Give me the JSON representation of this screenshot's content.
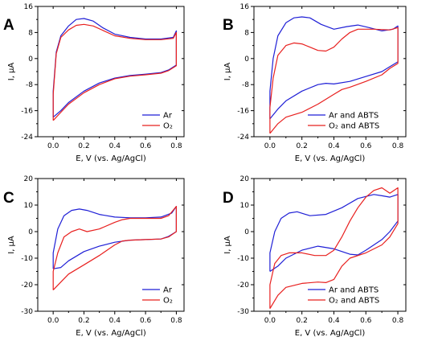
{
  "chart_data": [
    {
      "panel": "A",
      "type": "line",
      "xlabel": "E, V (vs. Ag/AgCl)",
      "ylabel": "I, μA",
      "xlim": [
        -0.1,
        0.85
      ],
      "ylim": [
        -24,
        16
      ],
      "xticks": [
        0.0,
        0.2,
        0.4,
        0.6,
        0.8
      ],
      "yticks": [
        -24,
        -16,
        -8,
        0,
        8,
        16
      ],
      "xtick_labels": [
        "0.0",
        "0.2",
        "0.4",
        "0.6",
        "0.8"
      ],
      "ytick_labels": [
        "-24",
        "-16",
        "-8",
        "0",
        "8",
        "16"
      ],
      "legend_position": "bottom-right",
      "series": [
        {
          "name": "Ar",
          "color": "#1f1fd6",
          "points": [
            [
              0.0,
              -18
            ],
            [
              0.05,
              -16
            ],
            [
              0.1,
              -13.5
            ],
            [
              0.2,
              -10
            ],
            [
              0.3,
              -7.5
            ],
            [
              0.4,
              -6
            ],
            [
              0.5,
              -5.2
            ],
            [
              0.6,
              -4.8
            ],
            [
              0.7,
              -4.3
            ],
            [
              0.75,
              -3.5
            ],
            [
              0.8,
              -2
            ],
            [
              0.8,
              8.5
            ],
            [
              0.78,
              6.5
            ],
            [
              0.7,
              6
            ],
            [
              0.6,
              6
            ],
            [
              0.5,
              6.5
            ],
            [
              0.4,
              7.5
            ],
            [
              0.32,
              9.5
            ],
            [
              0.26,
              11.5
            ],
            [
              0.2,
              12.3
            ],
            [
              0.15,
              12
            ],
            [
              0.1,
              10
            ],
            [
              0.05,
              7
            ],
            [
              0.02,
              2
            ],
            [
              0.0,
              -10
            ],
            [
              0.0,
              -18
            ]
          ]
        },
        {
          "name": "O₂",
          "color": "#e8201f",
          "points": [
            [
              0.0,
              -19
            ],
            [
              0.05,
              -16.5
            ],
            [
              0.1,
              -14
            ],
            [
              0.2,
              -10.5
            ],
            [
              0.3,
              -8
            ],
            [
              0.4,
              -6.2
            ],
            [
              0.5,
              -5.4
            ],
            [
              0.6,
              -5
            ],
            [
              0.7,
              -4.5
            ],
            [
              0.75,
              -3.7
            ],
            [
              0.8,
              -2.2
            ],
            [
              0.8,
              8
            ],
            [
              0.78,
              6.2
            ],
            [
              0.7,
              5.8
            ],
            [
              0.6,
              5.8
            ],
            [
              0.5,
              6.2
            ],
            [
              0.4,
              7
            ],
            [
              0.33,
              8.5
            ],
            [
              0.26,
              10
            ],
            [
              0.2,
              10.5
            ],
            [
              0.15,
              10.2
            ],
            [
              0.1,
              8.8
            ],
            [
              0.05,
              6.5
            ],
            [
              0.02,
              1.5
            ],
            [
              0.0,
              -11
            ],
            [
              0.0,
              -19
            ]
          ]
        }
      ]
    },
    {
      "panel": "B",
      "type": "line",
      "xlabel": "E, V (vs. Ag/AgCl)",
      "ylabel": "I, μA",
      "xlim": [
        -0.1,
        0.85
      ],
      "ylim": [
        -24,
        16
      ],
      "xticks": [
        0.0,
        0.2,
        0.4,
        0.6,
        0.8
      ],
      "yticks": [
        -24,
        -16,
        -8,
        0,
        8,
        16
      ],
      "xtick_labels": [
        "0.0",
        "0.2",
        "0.4",
        "0.6",
        "0.8"
      ],
      "ytick_labels": [
        "-24",
        "-16",
        "-8",
        "0",
        "8",
        "16"
      ],
      "legend_position": "bottom-right",
      "series": [
        {
          "name": "Ar and ABTS",
          "color": "#1f1fd6",
          "points": [
            [
              0.0,
              -18.5
            ],
            [
              0.05,
              -15.5
            ],
            [
              0.1,
              -13
            ],
            [
              0.2,
              -10
            ],
            [
              0.3,
              -8
            ],
            [
              0.35,
              -7.6
            ],
            [
              0.4,
              -7.8
            ],
            [
              0.5,
              -7
            ],
            [
              0.6,
              -5.5
            ],
            [
              0.7,
              -4
            ],
            [
              0.75,
              -2.5
            ],
            [
              0.8,
              -1
            ],
            [
              0.8,
              10
            ],
            [
              0.77,
              9
            ],
            [
              0.7,
              8.5
            ],
            [
              0.62,
              9.5
            ],
            [
              0.55,
              10.3
            ],
            [
              0.48,
              9.8
            ],
            [
              0.4,
              9
            ],
            [
              0.32,
              10.5
            ],
            [
              0.25,
              12.5
            ],
            [
              0.2,
              12.8
            ],
            [
              0.15,
              12.5
            ],
            [
              0.1,
              11
            ],
            [
              0.05,
              7
            ],
            [
              0.02,
              0
            ],
            [
              0.0,
              -10
            ],
            [
              0.0,
              -18.5
            ]
          ]
        },
        {
          "name": "O₂ and ABTS",
          "color": "#e8201f",
          "points": [
            [
              0.0,
              -23
            ],
            [
              0.05,
              -20
            ],
            [
              0.1,
              -18
            ],
            [
              0.2,
              -16.5
            ],
            [
              0.3,
              -14
            ],
            [
              0.4,
              -11
            ],
            [
              0.45,
              -9.5
            ],
            [
              0.5,
              -8.8
            ],
            [
              0.6,
              -7
            ],
            [
              0.7,
              -5
            ],
            [
              0.75,
              -3
            ],
            [
              0.8,
              -1.5
            ],
            [
              0.8,
              9.5
            ],
            [
              0.75,
              8.8
            ],
            [
              0.65,
              9
            ],
            [
              0.55,
              9
            ],
            [
              0.5,
              8
            ],
            [
              0.45,
              6
            ],
            [
              0.4,
              3.5
            ],
            [
              0.35,
              2.3
            ],
            [
              0.3,
              2.5
            ],
            [
              0.25,
              3.5
            ],
            [
              0.2,
              4.5
            ],
            [
              0.15,
              4.8
            ],
            [
              0.1,
              4
            ],
            [
              0.05,
              1
            ],
            [
              0.02,
              -6
            ],
            [
              0.0,
              -15
            ],
            [
              0.0,
              -23
            ]
          ]
        }
      ]
    },
    {
      "panel": "C",
      "type": "line",
      "xlabel": "E, V (vs. Ag/AgCl)",
      "ylabel": "I, μA",
      "xlim": [
        -0.1,
        0.85
      ],
      "ylim": [
        -30,
        20
      ],
      "xticks": [
        0.0,
        0.2,
        0.4,
        0.6,
        0.8
      ],
      "yticks": [
        -30,
        -20,
        -10,
        0,
        10,
        20
      ],
      "xtick_labels": [
        "0.0",
        "0.2",
        "0.4",
        "0.6",
        "0.8"
      ],
      "ytick_labels": [
        "-30",
        "-20",
        "-10",
        "0",
        "10",
        "20"
      ],
      "legend_position": "bottom-right",
      "series": [
        {
          "name": "Ar",
          "color": "#1f1fd6",
          "points": [
            [
              0.0,
              -14
            ],
            [
              0.05,
              -13.5
            ],
            [
              0.1,
              -11
            ],
            [
              0.2,
              -7.5
            ],
            [
              0.3,
              -5.5
            ],
            [
              0.4,
              -4
            ],
            [
              0.5,
              -3.2
            ],
            [
              0.6,
              -3
            ],
            [
              0.7,
              -2.8
            ],
            [
              0.75,
              -1.8
            ],
            [
              0.8,
              0
            ],
            [
              0.8,
              9.5
            ],
            [
              0.77,
              7
            ],
            [
              0.7,
              5.5
            ],
            [
              0.6,
              5.2
            ],
            [
              0.5,
              5.2
            ],
            [
              0.4,
              5.5
            ],
            [
              0.3,
              6.5
            ],
            [
              0.22,
              8
            ],
            [
              0.17,
              8.5
            ],
            [
              0.12,
              8
            ],
            [
              0.07,
              6
            ],
            [
              0.03,
              1
            ],
            [
              0.0,
              -8
            ],
            [
              0.0,
              -14
            ]
          ]
        },
        {
          "name": "O₂",
          "color": "#e8201f",
          "points": [
            [
              0.0,
              -22
            ],
            [
              0.05,
              -19
            ],
            [
              0.1,
              -16
            ],
            [
              0.2,
              -12.5
            ],
            [
              0.3,
              -9
            ],
            [
              0.35,
              -7
            ],
            [
              0.4,
              -5
            ],
            [
              0.45,
              -3.5
            ],
            [
              0.5,
              -3.2
            ],
            [
              0.6,
              -3
            ],
            [
              0.7,
              -2.8
            ],
            [
              0.75,
              -2
            ],
            [
              0.8,
              0
            ],
            [
              0.8,
              9.5
            ],
            [
              0.75,
              6
            ],
            [
              0.7,
              5
            ],
            [
              0.6,
              5
            ],
            [
              0.5,
              5
            ],
            [
              0.45,
              4.5
            ],
            [
              0.4,
              3.5
            ],
            [
              0.3,
              1
            ],
            [
              0.22,
              0
            ],
            [
              0.17,
              1
            ],
            [
              0.12,
              0
            ],
            [
              0.07,
              -2
            ],
            [
              0.03,
              -8
            ],
            [
              0.0,
              -15
            ],
            [
              0.0,
              -22
            ]
          ]
        }
      ]
    },
    {
      "panel": "D",
      "type": "line",
      "xlabel": "E, V (vs. Ag/AgCl)",
      "ylabel": "I, μA",
      "xlim": [
        -0.1,
        0.85
      ],
      "ylim": [
        -30,
        20
      ],
      "xticks": [
        0.0,
        0.2,
        0.4,
        0.6,
        0.8
      ],
      "yticks": [
        -30,
        -20,
        -10,
        0,
        10,
        20
      ],
      "xtick_labels": [
        "0.0",
        "0.2",
        "0.4",
        "0.6",
        "0.8"
      ],
      "ytick_labels": [
        "-30",
        "-20",
        "-10",
        "0",
        "10",
        "20"
      ],
      "legend_position": "bottom-right",
      "series": [
        {
          "name": "Ar and ABTS",
          "color": "#1f1fd6",
          "points": [
            [
              0.0,
              -15
            ],
            [
              0.05,
              -13
            ],
            [
              0.1,
              -10
            ],
            [
              0.2,
              -7
            ],
            [
              0.3,
              -5.5
            ],
            [
              0.4,
              -6.5
            ],
            [
              0.5,
              -8.5
            ],
            [
              0.55,
              -8.8
            ],
            [
              0.6,
              -7
            ],
            [
              0.7,
              -3
            ],
            [
              0.75,
              0
            ],
            [
              0.8,
              4
            ],
            [
              0.8,
              14
            ],
            [
              0.75,
              13
            ],
            [
              0.7,
              13.5
            ],
            [
              0.65,
              14
            ],
            [
              0.55,
              12.5
            ],
            [
              0.45,
              9
            ],
            [
              0.35,
              6.5
            ],
            [
              0.25,
              6
            ],
            [
              0.17,
              7.5
            ],
            [
              0.12,
              7
            ],
            [
              0.07,
              5
            ],
            [
              0.03,
              0
            ],
            [
              0.0,
              -8
            ],
            [
              0.0,
              -15
            ]
          ]
        },
        {
          "name": "O₂ and ABTS",
          "color": "#e8201f",
          "points": [
            [
              0.0,
              -29
            ],
            [
              0.05,
              -24
            ],
            [
              0.1,
              -21
            ],
            [
              0.2,
              -19.5
            ],
            [
              0.3,
              -19
            ],
            [
              0.35,
              -19.2
            ],
            [
              0.4,
              -18
            ],
            [
              0.45,
              -13
            ],
            [
              0.5,
              -10
            ],
            [
              0.6,
              -8
            ],
            [
              0.7,
              -5
            ],
            [
              0.75,
              -2
            ],
            [
              0.8,
              3
            ],
            [
              0.8,
              16.5
            ],
            [
              0.75,
              14.5
            ],
            [
              0.7,
              16.5
            ],
            [
              0.65,
              15.5
            ],
            [
              0.6,
              13
            ],
            [
              0.55,
              9
            ],
            [
              0.5,
              4
            ],
            [
              0.45,
              -2
            ],
            [
              0.4,
              -7
            ],
            [
              0.35,
              -9
            ],
            [
              0.28,
              -9
            ],
            [
              0.2,
              -8
            ],
            [
              0.12,
              -8
            ],
            [
              0.07,
              -9
            ],
            [
              0.03,
              -12
            ],
            [
              0.0,
              -20
            ],
            [
              0.0,
              -29
            ]
          ]
        }
      ]
    }
  ]
}
